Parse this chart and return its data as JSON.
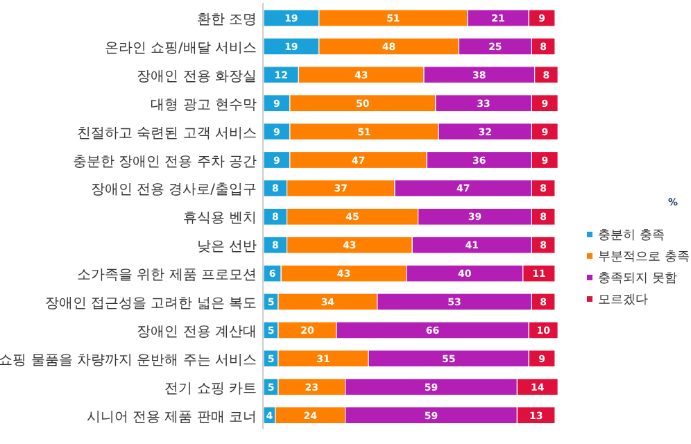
{
  "chart_data": {
    "type": "bar",
    "orientation": "horizontal",
    "stacked": true,
    "data_labels": true,
    "legend": "right",
    "categories": [
      "환한 조명",
      "온라인 쇼핑/배달 서비스",
      "장애인 전용 화장실",
      "대형 광고 현수막",
      "친절하고 숙련된 고객 서비스",
      "충분한 장애인 전용 주차 공간",
      "장애인 전용 경사로/출입구",
      "휴식용 벤치",
      "낮은 선반",
      "소가족을 위한 제품 프로모션",
      "장애인 접근성을 고려한 넓은 복도",
      "장애인 전용 계산대",
      "쇼핑 물품을 차량까지 운반해 주는 서비스",
      "전기 쇼핑 카트",
      "시니어 전용 제품 판매 코너"
    ],
    "series": [
      {
        "name": "충분히 충족",
        "color": "#1ba1d9",
        "values": [
          19,
          19,
          12,
          9,
          9,
          9,
          8,
          8,
          8,
          6,
          5,
          5,
          5,
          5,
          4
        ]
      },
      {
        "name": "부분적으로 충족",
        "color": "#ff8000",
        "values": [
          51,
          48,
          43,
          50,
          51,
          47,
          37,
          45,
          43,
          43,
          34,
          20,
          31,
          23,
          24
        ]
      },
      {
        "name": "충족되지 못함",
        "color": "#b31eb4",
        "values": [
          21,
          25,
          38,
          33,
          32,
          36,
          47,
          39,
          41,
          40,
          53,
          66,
          55,
          59,
          59
        ]
      },
      {
        "name": "모르겠다",
        "color": "#e0103c",
        "values": [
          9,
          8,
          8,
          9,
          9,
          9,
          8,
          8,
          8,
          11,
          8,
          10,
          9,
          14,
          13
        ]
      }
    ],
    "annotations": [
      "%"
    ]
  }
}
